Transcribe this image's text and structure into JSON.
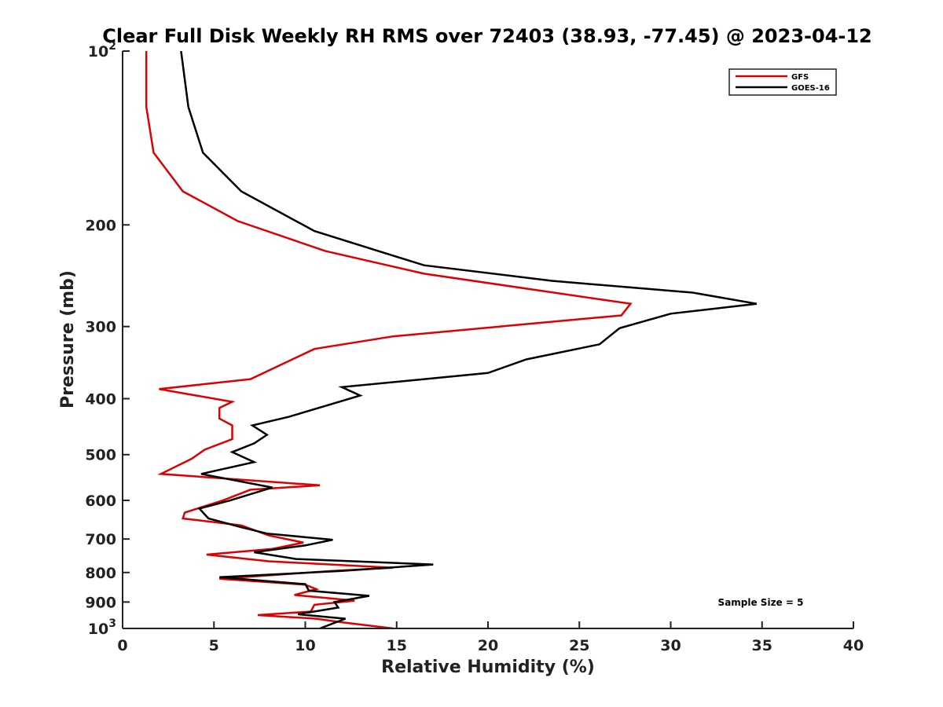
{
  "chart_data": {
    "type": "line",
    "title": "Clear Full Disk Weekly RH RMS over 72403 (38.93, -77.45) @ 2023-04-12",
    "xlabel": "Relative Humidity (%)",
    "ylabel": "Pressure (mb)",
    "xlim": [
      0,
      40
    ],
    "ylim": [
      100,
      1000
    ],
    "y_scale": "log",
    "y_reversed": true,
    "grid": false,
    "legend_position": "top-right",
    "x_ticks": [
      0,
      5,
      10,
      15,
      20,
      25,
      30,
      35,
      40
    ],
    "x_tick_labels": [
      "0",
      "5",
      "10",
      "15",
      "20",
      "25",
      "30",
      "35",
      "40"
    ],
    "y_ticks": [
      100,
      200,
      300,
      400,
      500,
      600,
      700,
      800,
      900,
      1000
    ],
    "y_tick_labels": [
      {
        "base": "10",
        "sup": "2"
      },
      {
        "base": "200",
        "sup": ""
      },
      {
        "base": "300",
        "sup": ""
      },
      {
        "base": "400",
        "sup": ""
      },
      {
        "base": "500",
        "sup": ""
      },
      {
        "base": "600",
        "sup": ""
      },
      {
        "base": "700",
        "sup": ""
      },
      {
        "base": "800",
        "sup": ""
      },
      {
        "base": "900",
        "sup": ""
      },
      {
        "base": "10",
        "sup": "3"
      }
    ],
    "annotation": "Sample Size = 5",
    "series": [
      {
        "name": "GFS",
        "color": "#dd0000",
        "points": [
          [
            1.3,
            100
          ],
          [
            1.3,
            125
          ],
          [
            1.7,
            150
          ],
          [
            3.3,
            175
          ],
          [
            6.3,
            197
          ],
          [
            11.1,
            222
          ],
          [
            16.5,
            243
          ],
          [
            27.8,
            274
          ],
          [
            27.3,
            287
          ],
          [
            14.8,
            312
          ],
          [
            10.5,
            328
          ],
          [
            7.0,
            370
          ],
          [
            2.0,
            385
          ],
          [
            6.0,
            405
          ],
          [
            5.3,
            415
          ],
          [
            5.3,
            433
          ],
          [
            6.0,
            445
          ],
          [
            6.0,
            470
          ],
          [
            4.5,
            490
          ],
          [
            3.8,
            508
          ],
          [
            2.1,
            540
          ],
          [
            10.8,
            565
          ],
          [
            7.0,
            575
          ],
          [
            5.5,
            600
          ],
          [
            3.4,
            630
          ],
          [
            3.3,
            645
          ],
          [
            6.5,
            663
          ],
          [
            8.0,
            690
          ],
          [
            9.9,
            710
          ],
          [
            8.2,
            728
          ],
          [
            4.6,
            745
          ],
          [
            8.0,
            765
          ],
          [
            14.8,
            785
          ],
          [
            11.5,
            795
          ],
          [
            5.3,
            820
          ],
          [
            10.0,
            840
          ],
          [
            10.6,
            855
          ],
          [
            9.4,
            875
          ],
          [
            12.7,
            895
          ],
          [
            10.5,
            910
          ],
          [
            10.3,
            935
          ],
          [
            7.4,
            948
          ],
          [
            10.6,
            962
          ],
          [
            11.9,
            975
          ],
          [
            14.8,
            1000
          ]
        ]
      },
      {
        "name": "GOES-16",
        "color": "#000000",
        "points": [
          [
            3.2,
            100
          ],
          [
            3.6,
            125
          ],
          [
            4.4,
            150
          ],
          [
            6.5,
            175
          ],
          [
            10.5,
            205
          ],
          [
            16.5,
            235
          ],
          [
            23.5,
            250
          ],
          [
            31.2,
            262
          ],
          [
            34.7,
            274
          ],
          [
            30.0,
            285
          ],
          [
            27.2,
            302
          ],
          [
            26.1,
            322
          ],
          [
            22.1,
            342
          ],
          [
            20.0,
            361
          ],
          [
            12.0,
            382
          ],
          [
            13.0,
            395
          ],
          [
            9.1,
            430
          ],
          [
            7.1,
            445
          ],
          [
            7.9,
            462
          ],
          [
            7.2,
            478
          ],
          [
            6.0,
            495
          ],
          [
            7.2,
            515
          ],
          [
            4.3,
            540
          ],
          [
            8.2,
            570
          ],
          [
            5.9,
            600
          ],
          [
            4.2,
            620
          ],
          [
            4.7,
            645
          ],
          [
            6.5,
            668
          ],
          [
            7.9,
            685
          ],
          [
            11.5,
            702
          ],
          [
            10.0,
            718
          ],
          [
            7.2,
            738
          ],
          [
            9.5,
            758
          ],
          [
            17.0,
            775
          ],
          [
            12.0,
            795
          ],
          [
            5.3,
            815
          ],
          [
            10.0,
            838
          ],
          [
            10.2,
            860
          ],
          [
            13.5,
            878
          ],
          [
            11.6,
            900
          ],
          [
            11.8,
            920
          ],
          [
            9.6,
            945
          ],
          [
            12.2,
            962
          ],
          [
            10.8,
            1000
          ]
        ]
      }
    ]
  }
}
